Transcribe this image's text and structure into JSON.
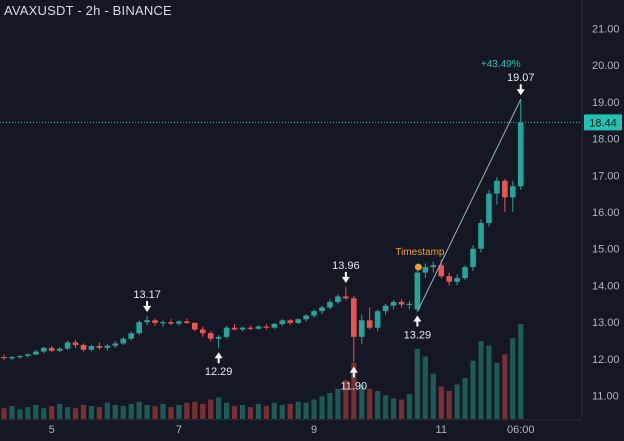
{
  "chart_data": {
    "type": "candlestick",
    "title": "AVAXUSDT - 2h - BINANCE",
    "ylim": [
      10.2,
      21.5
    ],
    "y_ticks": [
      "21.00",
      "20.00",
      "19.00",
      "18.00",
      "17.00",
      "16.00",
      "15.00",
      "14.00",
      "13.00",
      "12.00",
      "11.00"
    ],
    "x_ticks": [
      "5",
      "7",
      "9",
      "11",
      "06:00"
    ],
    "last_price": "18.44",
    "timestamp_label": "Timestamp",
    "change_label": "+43.49%",
    "annotations": [
      {
        "label": "13.17",
        "value": 13.17,
        "direction": "down",
        "bar": 18
      },
      {
        "label": "12.29",
        "value": 12.29,
        "direction": "up",
        "bar": 27
      },
      {
        "label": "13.96",
        "value": 13.96,
        "direction": "down",
        "bar": 43
      },
      {
        "label": "11.90",
        "value": 11.9,
        "direction": "up",
        "bar": 44
      },
      {
        "label": "13.29",
        "value": 13.29,
        "direction": "up",
        "bar": 52
      },
      {
        "label": "19.07",
        "value": 19.07,
        "direction": "down",
        "bar": 65
      }
    ],
    "trend_line": {
      "from": {
        "bar": 52,
        "value": 13.29
      },
      "to": {
        "bar": 65,
        "value": 19.07
      }
    },
    "colors": {
      "up": "#26a69a",
      "down": "#ef5350",
      "volume_up": "#1d5b57",
      "volume_down": "#7a2f33",
      "last_price": "#22c2b3",
      "timestamp": "#f0a030",
      "background": "#151824",
      "axis_text": "#b2b5be"
    },
    "candles": [
      [
        12.05,
        12.12,
        11.98,
        12.02
      ],
      [
        12.02,
        12.08,
        11.97,
        12.05
      ],
      [
        12.05,
        12.1,
        12.0,
        12.08
      ],
      [
        12.08,
        12.15,
        12.04,
        12.12
      ],
      [
        12.12,
        12.25,
        12.1,
        12.2
      ],
      [
        12.2,
        12.33,
        12.15,
        12.3
      ],
      [
        12.3,
        12.35,
        12.18,
        12.22
      ],
      [
        12.22,
        12.32,
        12.18,
        12.28
      ],
      [
        12.28,
        12.5,
        12.24,
        12.45
      ],
      [
        12.45,
        12.52,
        12.3,
        12.38
      ],
      [
        12.38,
        12.42,
        12.2,
        12.25
      ],
      [
        12.25,
        12.38,
        12.2,
        12.35
      ],
      [
        12.35,
        12.45,
        12.25,
        12.3
      ],
      [
        12.3,
        12.4,
        12.22,
        12.36
      ],
      [
        12.36,
        12.48,
        12.3,
        12.42
      ],
      [
        12.42,
        12.6,
        12.38,
        12.55
      ],
      [
        12.55,
        12.75,
        12.5,
        12.7
      ],
      [
        12.7,
        13.05,
        12.65,
        13.0
      ],
      [
        13.0,
        13.17,
        12.92,
        13.05
      ],
      [
        13.05,
        13.1,
        12.9,
        12.98
      ],
      [
        12.98,
        13.05,
        12.88,
        13.0
      ],
      [
        13.0,
        13.08,
        12.92,
        12.96
      ],
      [
        12.96,
        13.05,
        12.9,
        13.02
      ],
      [
        13.02,
        13.1,
        12.95,
        12.98
      ],
      [
        12.98,
        13.0,
        12.75,
        12.8
      ],
      [
        12.8,
        12.88,
        12.6,
        12.7
      ],
      [
        12.7,
        12.75,
        12.48,
        12.55
      ],
      [
        12.55,
        12.65,
        12.29,
        12.6
      ],
      [
        12.6,
        12.9,
        12.55,
        12.85
      ],
      [
        12.85,
        12.95,
        12.78,
        12.8
      ],
      [
        12.8,
        12.88,
        12.75,
        12.85
      ],
      [
        12.85,
        12.9,
        12.78,
        12.82
      ],
      [
        12.82,
        12.92,
        12.8,
        12.88
      ],
      [
        12.88,
        12.95,
        12.8,
        12.85
      ],
      [
        12.85,
        12.98,
        12.82,
        12.95
      ],
      [
        12.95,
        13.08,
        12.9,
        13.05
      ],
      [
        13.05,
        13.08,
        12.92,
        12.98
      ],
      [
        12.98,
        13.1,
        12.95,
        13.08
      ],
      [
        13.08,
        13.22,
        13.02,
        13.18
      ],
      [
        13.18,
        13.35,
        13.12,
        13.3
      ],
      [
        13.3,
        13.45,
        13.22,
        13.4
      ],
      [
        13.4,
        13.62,
        13.35,
        13.55
      ],
      [
        13.55,
        13.75,
        13.5,
        13.7
      ],
      [
        13.7,
        13.96,
        13.6,
        13.65
      ],
      [
        13.65,
        13.72,
        11.9,
        12.6
      ],
      [
        12.6,
        13.2,
        12.4,
        13.05
      ],
      [
        13.05,
        13.4,
        12.8,
        12.85
      ],
      [
        12.85,
        13.35,
        12.75,
        13.3
      ],
      [
        13.3,
        13.5,
        13.2,
        13.45
      ],
      [
        13.45,
        13.6,
        13.35,
        13.55
      ],
      [
        13.55,
        13.62,
        13.4,
        13.48
      ],
      [
        13.48,
        13.58,
        13.35,
        13.5
      ],
      [
        13.35,
        14.4,
        13.29,
        14.35
      ],
      [
        14.35,
        14.6,
        14.2,
        14.5
      ],
      [
        14.5,
        14.65,
        14.35,
        14.55
      ],
      [
        14.55,
        14.7,
        14.2,
        14.25
      ],
      [
        14.25,
        14.35,
        14.0,
        14.1
      ],
      [
        14.1,
        14.3,
        14.0,
        14.2
      ],
      [
        14.2,
        14.55,
        14.15,
        14.5
      ],
      [
        14.5,
        15.1,
        14.4,
        15.0
      ],
      [
        15.0,
        15.8,
        14.9,
        15.7
      ],
      [
        15.7,
        16.6,
        15.6,
        16.5
      ],
      [
        16.5,
        16.95,
        16.2,
        16.85
      ],
      [
        16.85,
        16.9,
        16.0,
        16.4
      ],
      [
        16.4,
        16.85,
        16.0,
        16.7
      ],
      [
        16.7,
        19.07,
        16.6,
        18.44
      ]
    ],
    "volumes": [
      1.0,
      1.2,
      0.9,
      1.1,
      1.3,
      1.0,
      1.2,
      1.4,
      1.1,
      1.0,
      1.3,
      1.2,
      1.1,
      1.5,
      1.3,
      1.2,
      1.4,
      1.6,
      1.3,
      1.2,
      1.4,
      1.1,
      1.3,
      1.5,
      1.6,
      1.4,
      1.8,
      2.0,
      1.5,
      1.2,
      1.3,
      1.1,
      1.4,
      1.2,
      1.5,
      1.3,
      1.4,
      1.6,
      1.5,
      1.8,
      2.1,
      2.4,
      2.8,
      3.6,
      5.2,
      3.2,
      2.8,
      2.6,
      2.2,
      1.9,
      1.8,
      2.3,
      6.5,
      5.8,
      4.2,
      3.0,
      2.6,
      3.2,
      3.8,
      5.4,
      7.2,
      6.8,
      5.2,
      6.0,
      7.5,
      8.8
    ]
  }
}
